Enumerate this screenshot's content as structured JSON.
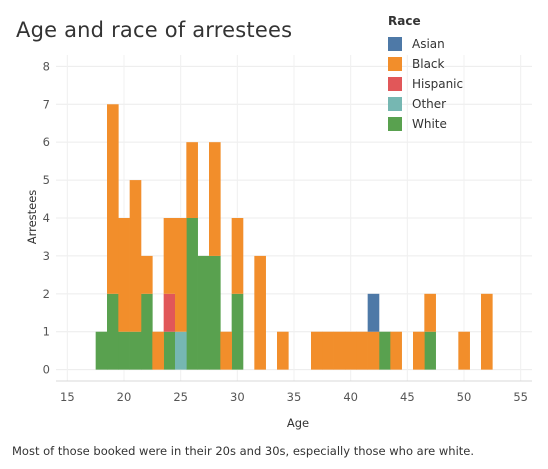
{
  "caption": "Most of those booked were in their 20s and 30s, especially those who are white.",
  "chart_data": {
    "type": "bar",
    "subtype": "stacked-histogram",
    "title": "Age and race of arrestees",
    "xlabel": "Age",
    "ylabel": "Arrestees",
    "xlim": [
      14,
      56
    ],
    "ylim": [
      -0.3,
      8.3
    ],
    "x_ticks": [
      15,
      20,
      25,
      30,
      35,
      40,
      45,
      50,
      55
    ],
    "y_ticks": [
      0,
      1,
      2,
      3,
      4,
      5,
      6,
      7,
      8
    ],
    "grid": true,
    "legend_position": "top-right",
    "legend_title": "Race",
    "series": [
      {
        "name": "Asian",
        "color": "#4e79a7",
        "data": [
          [
            42,
            1
          ]
        ]
      },
      {
        "name": "Black",
        "color": "#f28e2b",
        "data": [
          [
            19,
            5
          ],
          [
            20,
            3
          ],
          [
            21,
            4
          ],
          [
            22,
            1
          ],
          [
            23,
            1
          ],
          [
            24,
            2
          ],
          [
            25,
            3
          ],
          [
            26,
            2
          ],
          [
            28,
            3
          ],
          [
            29,
            1
          ],
          [
            30,
            2
          ],
          [
            32,
            3
          ],
          [
            34,
            1
          ],
          [
            37,
            1
          ],
          [
            38,
            1
          ],
          [
            39,
            1
          ],
          [
            40,
            1
          ],
          [
            41,
            1
          ],
          [
            42,
            1
          ],
          [
            44,
            1
          ],
          [
            46,
            1
          ],
          [
            47,
            1
          ],
          [
            50,
            1
          ],
          [
            52,
            2
          ]
        ]
      },
      {
        "name": "Hispanic",
        "color": "#e15759",
        "data": [
          [
            24,
            1
          ]
        ]
      },
      {
        "name": "Other",
        "color": "#76b7b2",
        "data": [
          [
            25,
            1
          ]
        ]
      },
      {
        "name": "White",
        "color": "#59a14f",
        "data": [
          [
            18,
            1
          ],
          [
            19,
            2
          ],
          [
            20,
            1
          ],
          [
            21,
            1
          ],
          [
            22,
            2
          ],
          [
            24,
            1
          ],
          [
            26,
            4
          ],
          [
            27,
            3
          ],
          [
            28,
            3
          ],
          [
            30,
            2
          ],
          [
            43,
            1
          ],
          [
            47,
            1
          ]
        ]
      }
    ]
  }
}
